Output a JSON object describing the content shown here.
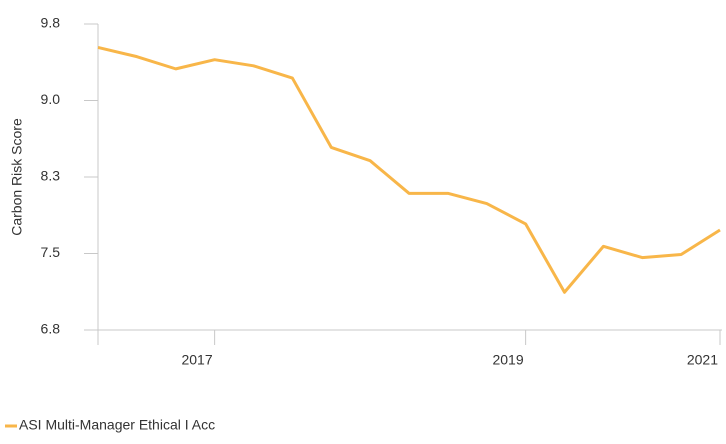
{
  "chart_data": {
    "type": "line",
    "y_label": "Carbon Risk Score",
    "categories": [
      null,
      null,
      null,
      "2017",
      null,
      null,
      null,
      null,
      null,
      null,
      null,
      "2019",
      null,
      null,
      null,
      null,
      "2021"
    ],
    "series": [
      {
        "name": "ASI Multi-Manager Ethical I Acc",
        "color": "#f8b649",
        "values": [
          9.52,
          9.43,
          9.31,
          9.4,
          9.34,
          9.22,
          8.54,
          8.41,
          8.09,
          8.09,
          7.99,
          7.79,
          7.12,
          7.57,
          7.46,
          7.49,
          7.73
        ]
      }
    ],
    "ylim": [
      6.75,
      9.75
    ],
    "yticks": [
      {
        "value": 6.75,
        "label": "6.8"
      },
      7.5,
      {
        "value": 8.25,
        "label": "8.3"
      },
      {
        "value": 9,
        "label": "9.0"
      },
      {
        "value": 9.75,
        "label": "9.8"
      }
    ],
    "legend": "bottom-left"
  }
}
